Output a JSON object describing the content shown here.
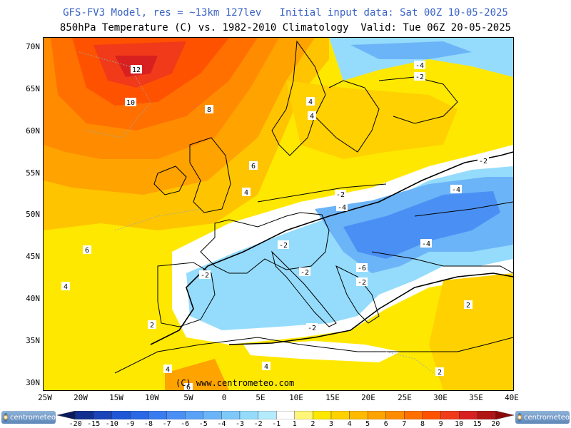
{
  "header": {
    "line1": "GFS-FV3 Model, res = ~13km 127lev   Initial input data: Sat 00Z 10-05-2025",
    "line2": "850hPa Temperature (C) vs. 1982-2010 Climatology  Valid: Tue 06Z 20-05-2025"
  },
  "axes": {
    "y_ticks": [
      "70N",
      "65N",
      "60N",
      "55N",
      "50N",
      "45N",
      "40N",
      "35N",
      "30N"
    ],
    "x_ticks": [
      "25W",
      "20W",
      "15W",
      "10W",
      "5W",
      "0",
      "5E",
      "10E",
      "15E",
      "20E",
      "25E",
      "30E",
      "35E",
      "40E"
    ]
  },
  "map": {
    "copyright": "(C) www.centrometeo.com",
    "contour_labels": [
      {
        "text": "12"
      },
      {
        "text": "10"
      },
      {
        "text": "8"
      },
      {
        "text": "6"
      },
      {
        "text": "4"
      },
      {
        "text": "6"
      },
      {
        "text": "4"
      },
      {
        "text": "4"
      },
      {
        "text": "4"
      },
      {
        "text": "2"
      },
      {
        "text": "2"
      },
      {
        "text": "4"
      },
      {
        "text": "-4"
      },
      {
        "text": "-2"
      },
      {
        "text": "-2"
      },
      {
        "text": "-2"
      },
      {
        "text": "-4"
      },
      {
        "text": "-4"
      },
      {
        "text": "-2"
      },
      {
        "text": "-2"
      },
      {
        "text": "-4"
      },
      {
        "text": "-6"
      },
      {
        "text": "-2"
      },
      {
        "text": "-2"
      },
      {
        "text": "-2"
      },
      {
        "text": "-2"
      },
      {
        "text": "2"
      },
      {
        "text": "2"
      },
      {
        "text": "4"
      },
      {
        "text": "2"
      },
      {
        "text": "6"
      }
    ]
  },
  "colorbar": {
    "labels": [
      "-20",
      "-15",
      "-10",
      "-9",
      "-8",
      "-7",
      "-6",
      "-5",
      "-4",
      "-3",
      "-2",
      "-1",
      "1",
      "2",
      "3",
      "4",
      "5",
      "6",
      "7",
      "8",
      "9",
      "10",
      "15",
      "20"
    ],
    "colors": [
      "#0a1a5e",
      "#12308f",
      "#1a44b8",
      "#1f56d6",
      "#2a68e6",
      "#3a7cf0",
      "#4a90f4",
      "#5aa2f6",
      "#6cb4f8",
      "#7ec8fa",
      "#95dcfc",
      "#b5ecfd",
      "#ffffff",
      "#fff67a",
      "#ffe800",
      "#ffd100",
      "#ffba00",
      "#ffa300",
      "#ff8c00",
      "#ff7000",
      "#ff5200",
      "#f03a1a",
      "#d92020",
      "#b01515",
      "#8a0a0a"
    ]
  },
  "logos": {
    "left": "centrometeo",
    "right": "centrometeo"
  }
}
